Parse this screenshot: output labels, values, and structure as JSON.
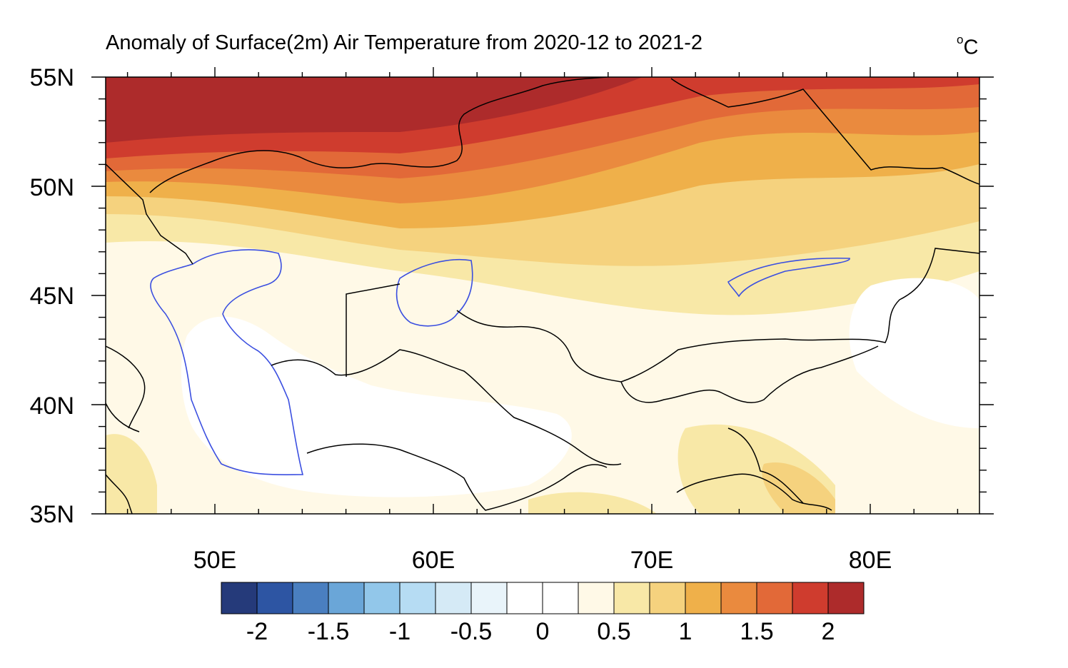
{
  "map": {
    "title": "Anomaly of Surface(2m) Air Temperature from 2020-12 to 2021-2",
    "units_degree": "o",
    "units_letter": "C",
    "lat_labels": [
      "55N",
      "50N",
      "45N",
      "40N",
      "35N"
    ],
    "lon_labels": [
      "50E",
      "60E",
      "70E",
      "80E"
    ],
    "extent": {
      "lon_min": 45,
      "lon_max": 85,
      "lat_min": 35,
      "lat_max": 55
    },
    "colorbar": {
      "colors": [
        "#253a7a",
        "#2d55a3",
        "#4a7fc0",
        "#6aa6d8",
        "#92c7ea",
        "#b6dcf3",
        "#d5eaf6",
        "#e9f4fa",
        "#ffffff",
        "#ffffff",
        "#fff9e7",
        "#f8e8a7",
        "#f5d27e",
        "#efb04a",
        "#ea8a3e",
        "#e26938",
        "#cf3c2e",
        "#ad2b2b"
      ],
      "labels": [
        "-2",
        "-1.5",
        "-1",
        "-0.5",
        "0",
        "0.5",
        "1",
        "1.5",
        "2"
      ]
    }
  }
}
